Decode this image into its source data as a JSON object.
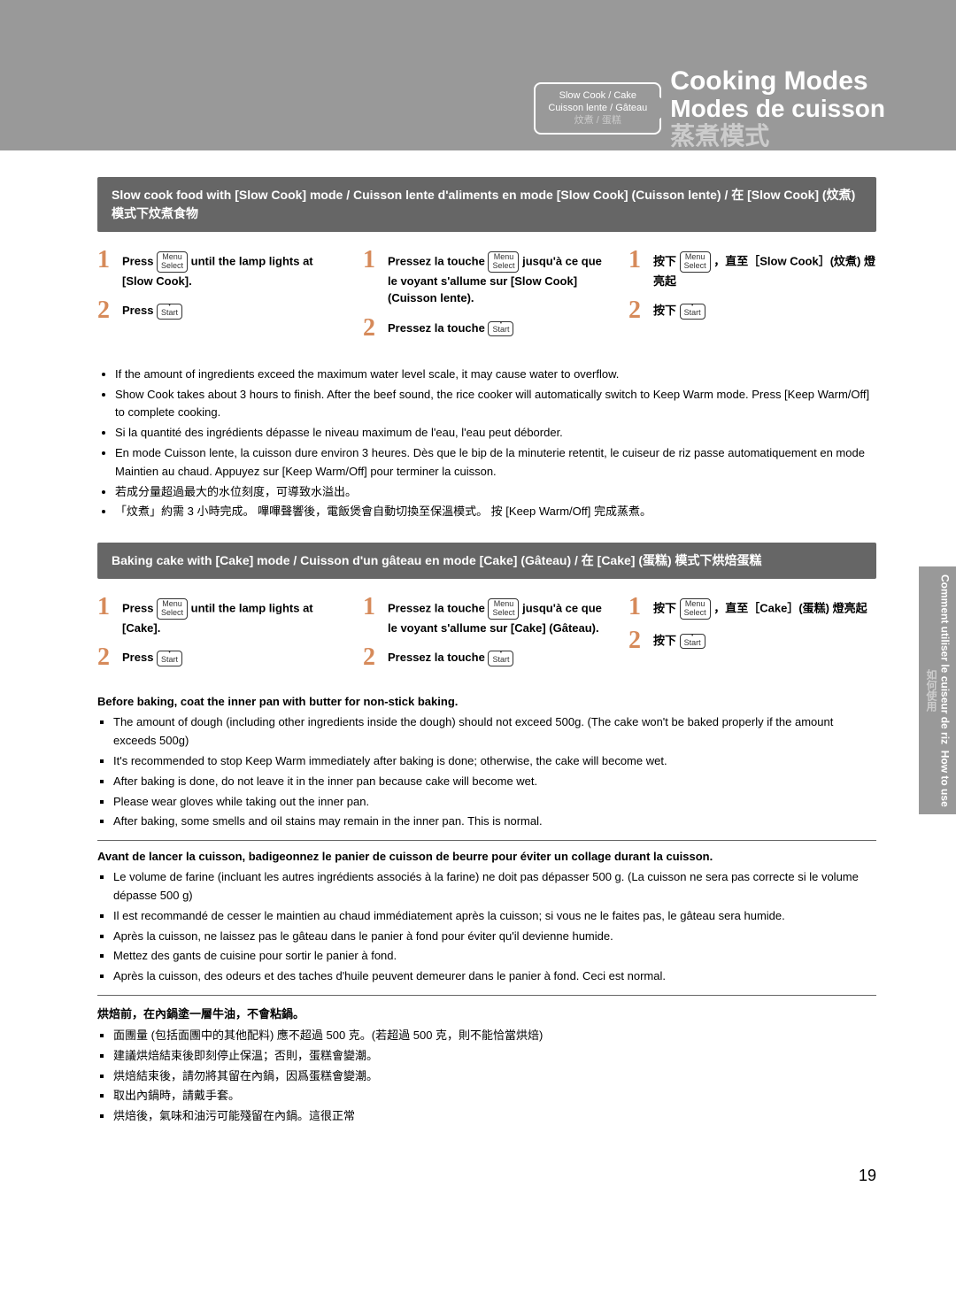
{
  "badge": {
    "line1": "Slow Cook / Cake",
    "line2": "Cuisson lente /  Gâteau",
    "line3": "炆煮 / 蛋糕"
  },
  "titles": {
    "en": "Cooking Modes",
    "fr": "Modes de cuisson",
    "zh": "蒸煮模式"
  },
  "slowcook": {
    "header": "Slow cook food with [Slow Cook] mode / Cuisson lente d'aliments en mode [Slow Cook] (Cuisson lente) / 在 [Slow Cook] (炆煮) 模式下炆煮食物",
    "en": {
      "s1a": "Press ",
      "s1b": " until the lamp lights at [Slow Cook].",
      "s2a": "Press "
    },
    "fr": {
      "s1a": "Pressez la touche ",
      "s1b": " jusqu'à ce que le voyant s'allume sur [Slow Cook] (Cuisson lente).",
      "s2a": "Pressez la touche "
    },
    "zh": {
      "s1a": "按下 ",
      "s1b": " ，直至［Slow Cook］(炆煮) 燈亮起",
      "s2a": "按下 "
    },
    "notes": [
      "If the amount of ingredients exceed the maximum water level scale, it may cause water to overflow.",
      "Show Cook takes about 3 hours to finish. After the beef sound, the rice cooker will automatically switch to Keep Warm mode. Press [Keep Warm/Off] to complete cooking.",
      "Si la quantité des ingrédients dépasse le niveau maximum de l'eau, l'eau peut déborder.",
      "En mode Cuisson lente, la cuisson dure environ 3 heures. Dès que le bip de la minuterie retentit, le cuiseur de riz passe automatiquement en mode Maintien au chaud. Appuyez sur [Keep Warm/Off] pour terminer la cuisson.",
      "若成分量超過最大的水位刻度，可導致水溢出。",
      "「炆煮」約需 3 小時完成。 嗶嗶聲響後，電飯煲會自動切換至保溫模式。 按 [Keep Warm/Off] 完成蒸煮。"
    ]
  },
  "cake": {
    "header": "Baking cake with [Cake] mode / Cuisson d'un gâteau en mode [Cake] (Gâteau)  / 在 [Cake] (蛋糕) 模式下烘焙蛋糕",
    "en": {
      "s1a": "Press ",
      "s1b": " until the lamp lights at [Cake].",
      "s2a": "Press "
    },
    "fr": {
      "s1a": "Pressez la touche ",
      "s1b": " jusqu'à ce que le voyant s'allume sur [Cake] (Gâteau).",
      "s2a": "Pressez la touche "
    },
    "zh": {
      "s1a": "按下 ",
      "s1b": " ，直至［Cake］(蛋糕) 燈亮起",
      "s2a": "按下 "
    },
    "warn_en_title": "Before baking, coat the inner pan with butter for non-stick baking.",
    "warn_en": [
      "The amount of dough (including other ingredients inside the dough) should not exceed 500g. (The cake won't be baked properly if the amount exceeds 500g)",
      "It's recommended to stop Keep Warm immediately after baking is done; otherwise, the cake will become wet.",
      "After baking is done, do not leave it in the inner pan because cake will become wet.",
      "Please wear gloves while taking out the inner pan.",
      "After baking, some smells and oil stains may remain in the inner pan. This is normal."
    ],
    "warn_fr_title": "Avant de lancer la cuisson, badigeonnez le panier de cuisson de beurre pour éviter un collage durant la cuisson.",
    "warn_fr": [
      "Le volume de farine (incluant les autres ingrédients associés à la farine) ne doit pas dépasser 500 g. (La cuisson ne sera pas correcte si le volume dépasse 500 g)",
      "Il est recommandé de cesser le maintien au chaud immédiatement après la cuisson; si vous ne le faites pas, le gâteau sera humide.",
      "Après la cuisson, ne laissez pas le gâteau dans le panier à fond pour éviter qu'il devienne humide.",
      "Mettez des gants de cuisine pour sortir le panier à fond.",
      "Après la cuisson, des odeurs et des taches d'huile peuvent demeurer dans le panier à fond. Ceci est normal."
    ],
    "warn_zh_title": "烘焙前，在內鍋塗一層牛油，不會粘鍋。",
    "warn_zh": [
      "面團量 (包括面團中的其他配料) 應不超過 500 克。(若超過 500 克，則不能恰當烘焙)",
      "建議烘焙結束後即刻停止保溫；否則，蛋糕會變潮。",
      "烘焙結束後，請勿將其留在內鍋，因爲蛋糕會變潮。",
      "取出內鍋時，請戴手套。",
      "烘焙後，氣味和油污可能殘留在內鍋。這很正常"
    ]
  },
  "buttons": {
    "menu": "Menu\nSelect",
    "start": "Start",
    "off": "Keep Warm\nOff"
  },
  "sidetab": {
    "en": "How to use",
    "fr": "Comment utiliser le cuiseur de riz",
    "zh": "如何使用"
  },
  "page_num": "19"
}
